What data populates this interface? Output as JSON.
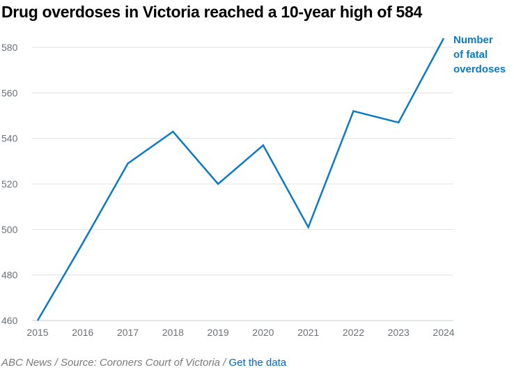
{
  "chart_data": {
    "type": "line",
    "title": "Drug overdoses in Victoria reached a 10-year high of 584",
    "x": [
      "2015",
      "2016",
      "2017",
      "2018",
      "2019",
      "2020",
      "2021",
      "2022",
      "2023",
      "2024"
    ],
    "series": [
      {
        "name": "Number of fatal overdoses",
        "values": [
          460,
          494,
          529,
          543,
          520,
          537,
          501,
          552,
          547,
          584
        ],
        "color": "#0a79c6"
      }
    ],
    "yticks": [
      460,
      480,
      500,
      520,
      540,
      560,
      580
    ],
    "ylim": [
      460,
      584
    ],
    "grid": true,
    "series_label_lines": [
      "Number",
      "of fatal",
      "overdoses"
    ]
  },
  "footer": {
    "source": "ABC News / Source: Coroners Court of Victoria / ",
    "link": "Get the data"
  }
}
